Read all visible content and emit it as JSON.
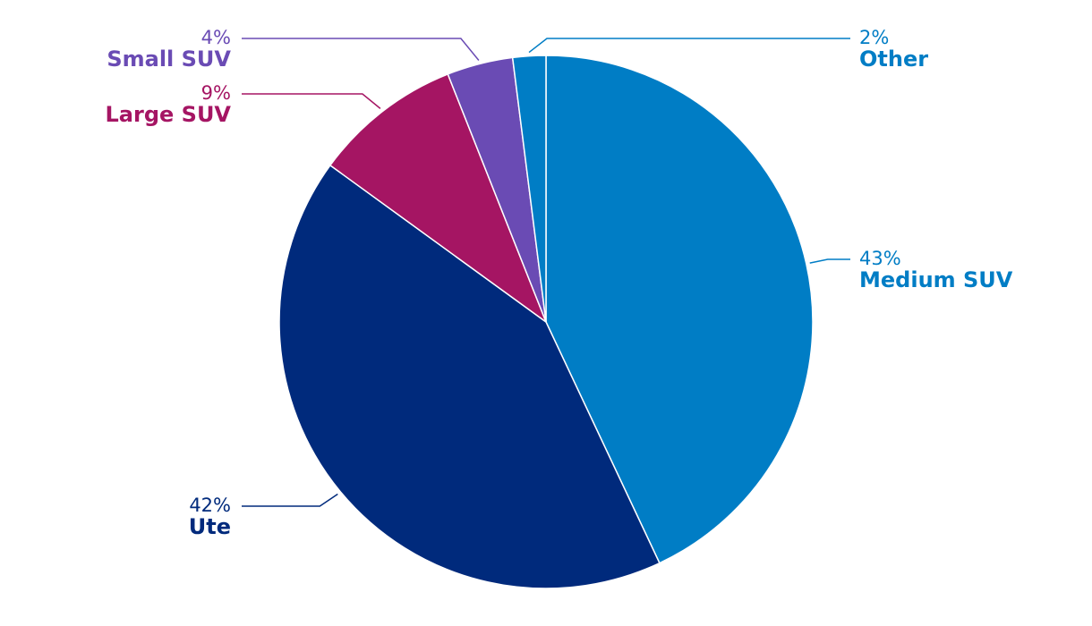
{
  "chart_data": {
    "type": "pie",
    "categories": [
      "Medium SUV",
      "Ute",
      "Large SUV",
      "Small SUV",
      "Other"
    ],
    "values": [
      43,
      42,
      9,
      4,
      2
    ],
    "value_labels": [
      "43%",
      "42%",
      "9%",
      "4%",
      "2%"
    ],
    "colors": [
      "#007dc5",
      "#002a7c",
      "#a51563",
      "#6a4bb4",
      "#007dc5"
    ]
  }
}
